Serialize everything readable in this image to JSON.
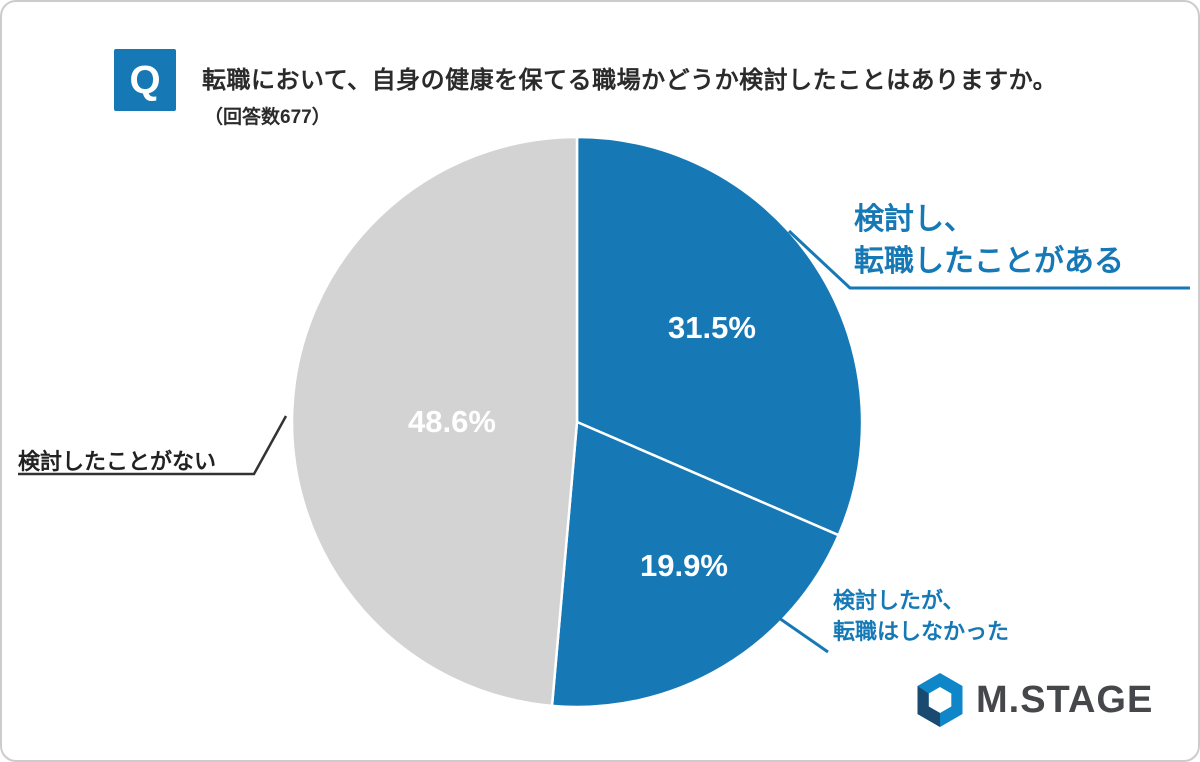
{
  "header": {
    "q_badge": "Q",
    "title": "転職において、自身の健康を保てる職場かどうか検討したことはありますか。",
    "subtitle": "（回答数677）"
  },
  "chart_data": {
    "type": "pie",
    "title": "転職において、自身の健康を保てる職場かどうか検討したことはありますか。",
    "respondents": 677,
    "categories": [
      "検討し、転職したことがある",
      "検討したが、転職はしなかった",
      "検討したことがない"
    ],
    "values": [
      31.5,
      19.9,
      48.6
    ],
    "value_labels": [
      "31.5%",
      "19.9%",
      "48.6%"
    ],
    "colors": [
      "#1679b6",
      "#1679b6",
      "#d3d3d4"
    ],
    "start_angle": 0,
    "direction": "clockwise",
    "legend_position": "callouts"
  },
  "callouts": {
    "considered_changed": {
      "line1": "検討し、",
      "line2": "転職したことがある"
    },
    "considered_not_changed": {
      "line1": "検討したが、",
      "line2": "転職はしなかった"
    },
    "never_considered": {
      "text": "検討したことがない"
    }
  },
  "logo": {
    "brand": "M.STAGE"
  }
}
